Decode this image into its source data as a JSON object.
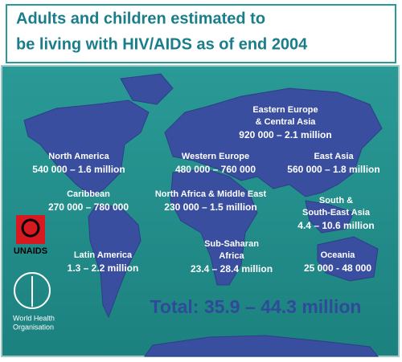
{
  "title": {
    "lines": [
      "Adults and children estimated to",
      "be living with HIV/AIDS as of end 2004"
    ]
  },
  "regions": [
    {
      "name_lines": [
        "Eastern Europe",
        "& Central Asia"
      ],
      "range": "920 000 – 2.1 million"
    },
    {
      "name_lines": [
        "North America"
      ],
      "range": "540 000 – 1.6 million"
    },
    {
      "name_lines": [
        "Western Europe"
      ],
      "range": "480 000 – 760 000"
    },
    {
      "name_lines": [
        "East Asia"
      ],
      "range": "560 000 – 1.8 million"
    },
    {
      "name_lines": [
        "Caribbean"
      ],
      "range": "270 000 – 780 000"
    },
    {
      "name_lines": [
        "North Africa & Middle East"
      ],
      "range": "230 000 – 1.5 million"
    },
    {
      "name_lines": [
        "South &",
        "South-East Asia"
      ],
      "range": "4.4 – 10.6 million"
    },
    {
      "name_lines": [
        "Latin America"
      ],
      "range": "1.3 – 2.2 million"
    },
    {
      "name_lines": [
        "Sub-Saharan",
        "Africa"
      ],
      "range": "23.4 – 28.4 million"
    },
    {
      "name_lines": [
        "Oceania"
      ],
      "range": "25 000 - 48 000"
    }
  ],
  "total": "Total: 35.9 – 44.3 million",
  "logos": {
    "unaids": "UNAIDS",
    "who": [
      "World Health",
      "Organisation"
    ]
  }
}
